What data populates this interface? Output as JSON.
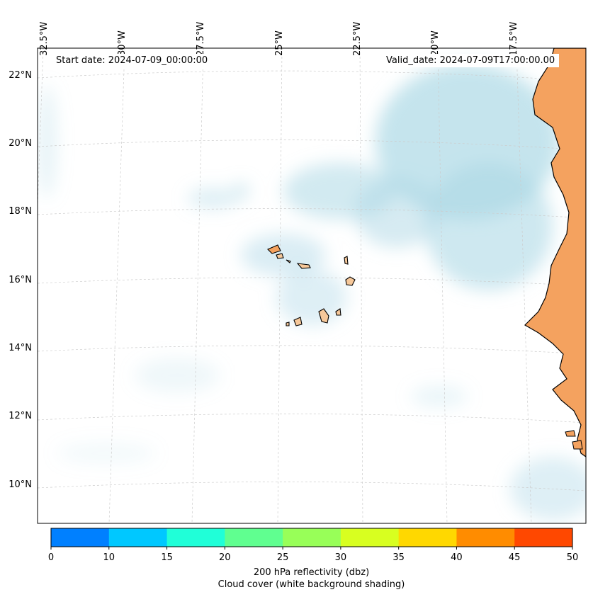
{
  "map": {
    "longitude_labels": [
      "32.5°W",
      "30°W",
      "27.5°W",
      "25°W",
      "22.5°W",
      "20°W",
      "17.5°W"
    ],
    "latitude_labels": [
      "22°N",
      "20°N",
      "18°N",
      "16°N",
      "14°N",
      "12°N",
      "10°N"
    ],
    "start_date": "Start date: 2024-07-09_00:00:00",
    "valid_date": "Valid_date: 2024-07-09T17:00:00.00",
    "colors": {
      "cloud": "#add8e6",
      "land": "#f4a25f",
      "coast": "#000000",
      "grid": "#cccccc"
    }
  },
  "colorbar": {
    "ticks": [
      "0",
      "10",
      "15",
      "20",
      "25",
      "30",
      "35",
      "40",
      "45",
      "50"
    ],
    "colors": [
      "#0080ff",
      "#00c8ff",
      "#20ffd8",
      "#60ff90",
      "#98ff58",
      "#d8ff20",
      "#ffd800",
      "#ff8c00",
      "#ff4800"
    ],
    "label": "200 hPa reflectivity (dbz)",
    "sublabel": "Cloud cover (white background shading)"
  }
}
